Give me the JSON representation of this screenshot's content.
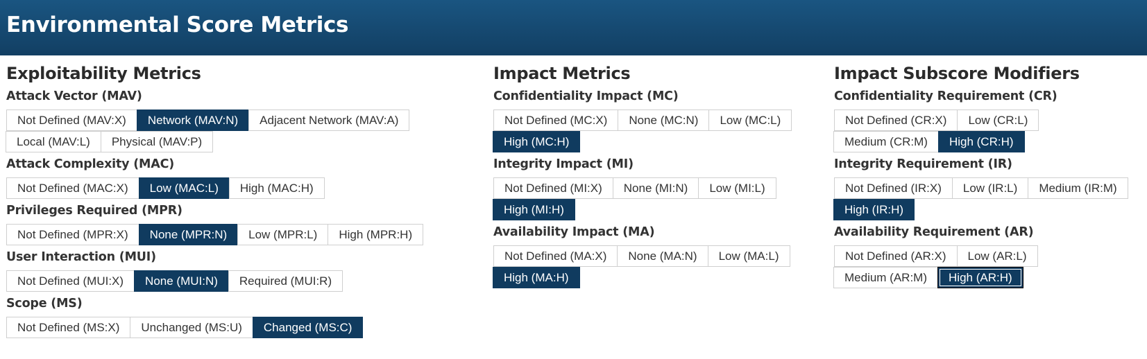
{
  "header": {
    "title": "Environmental Score Metrics"
  },
  "exploitability": {
    "title": "Exploitability Metrics",
    "metrics": [
      {
        "label": "Attack Vector (MAV)",
        "options": [
          "Not Defined (MAV:X)",
          "Network (MAV:N)",
          "Adjacent Network (MAV:A)",
          "Local (MAV:L)",
          "Physical (MAV:P)"
        ],
        "selected": "Network (MAV:N)"
      },
      {
        "label": "Attack Complexity (MAC)",
        "options": [
          "Not Defined (MAC:X)",
          "Low (MAC:L)",
          "High (MAC:H)"
        ],
        "selected": "Low (MAC:L)"
      },
      {
        "label": "Privileges Required (MPR)",
        "options": [
          "Not Defined (MPR:X)",
          "None (MPR:N)",
          "Low (MPR:L)",
          "High (MPR:H)"
        ],
        "selected": "None (MPR:N)"
      },
      {
        "label": "User Interaction (MUI)",
        "options": [
          "Not Defined (MUI:X)",
          "None (MUI:N)",
          "Required (MUI:R)"
        ],
        "selected": "None (MUI:N)"
      },
      {
        "label": "Scope (MS)",
        "options": [
          "Not Defined (MS:X)",
          "Unchanged (MS:U)",
          "Changed (MS:C)"
        ],
        "selected": "Changed (MS:C)"
      }
    ]
  },
  "impact": {
    "title": "Impact Metrics",
    "metrics": [
      {
        "label": "Confidentiality Impact (MC)",
        "options": [
          "Not Defined (MC:X)",
          "None (MC:N)",
          "Low (MC:L)",
          "High (MC:H)"
        ],
        "selected": "High (MC:H)"
      },
      {
        "label": "Integrity Impact (MI)",
        "options": [
          "Not Defined (MI:X)",
          "None (MI:N)",
          "Low (MI:L)",
          "High (MI:H)"
        ],
        "selected": "High (MI:H)"
      },
      {
        "label": "Availability Impact (MA)",
        "options": [
          "Not Defined (MA:X)",
          "None (MA:N)",
          "Low (MA:L)",
          "High (MA:H)"
        ],
        "selected": "High (MA:H)"
      }
    ]
  },
  "modifiers": {
    "title": "Impact Subscore Modifiers",
    "metrics": [
      {
        "label": "Confidentiality Requirement (CR)",
        "options": [
          "Not Defined (CR:X)",
          "Low (CR:L)",
          "Medium (CR:M)",
          "High (CR:H)"
        ],
        "selected": "High (CR:H)"
      },
      {
        "label": "Integrity Requirement (IR)",
        "options": [
          "Not Defined (IR:X)",
          "Low (IR:L)",
          "Medium (IR:M)",
          "High (IR:H)"
        ],
        "selected": "High (IR:H)"
      },
      {
        "label": "Availability Requirement (AR)",
        "options": [
          "Not Defined (AR:X)",
          "Low (AR:L)",
          "Medium (AR:M)",
          "High (AR:H)"
        ],
        "selected": "High (AR:H)",
        "focused": "High (AR:H)"
      }
    ]
  },
  "colors": {
    "banner": "#154b74",
    "selected": "#103b5f",
    "border": "#cfcfcf"
  }
}
